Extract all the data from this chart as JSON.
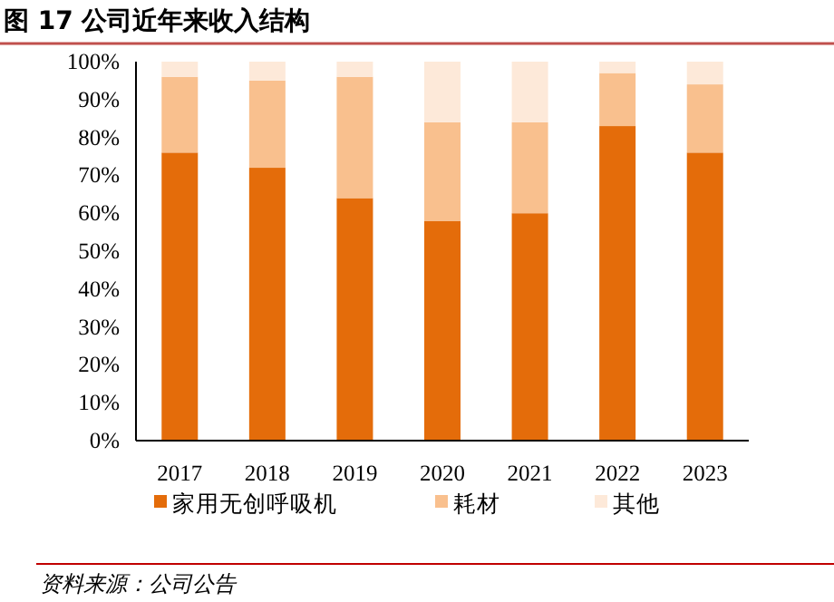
{
  "chart_data": {
    "type": "bar",
    "stacked": true,
    "title": "图 17 公司近年来收入结构",
    "categories": [
      "2017",
      "2018",
      "2019",
      "2020",
      "2021",
      "2022",
      "2023"
    ],
    "series": [
      {
        "name": "家用无创呼吸机",
        "color": "#e46c0a",
        "values": [
          76,
          72,
          64,
          58,
          60,
          83,
          76
        ]
      },
      {
        "name": "耗材",
        "color": "#f9c08e",
        "values": [
          20,
          23,
          32,
          26,
          24,
          14,
          18
        ]
      },
      {
        "name": "其他",
        "color": "#fde9d9",
        "values": [
          4,
          5,
          4,
          16,
          16,
          3,
          6
        ]
      }
    ],
    "ylim": [
      0,
      100
    ],
    "yticks": [
      {
        "value": 0,
        "label": "0%"
      },
      {
        "value": 10,
        "label": "10%"
      },
      {
        "value": 20,
        "label": "20%"
      },
      {
        "value": 30,
        "label": "30%"
      },
      {
        "value": 40,
        "label": "40%"
      },
      {
        "value": 50,
        "label": "50%"
      },
      {
        "value": 60,
        "label": "60%"
      },
      {
        "value": 70,
        "label": "70%"
      },
      {
        "value": 80,
        "label": "80%"
      },
      {
        "value": 90,
        "label": "90%"
      },
      {
        "value": 100,
        "label": "100%"
      }
    ],
    "grid": false,
    "legend": "bottom",
    "annotations": [
      "资料来源：公司公告"
    ]
  }
}
